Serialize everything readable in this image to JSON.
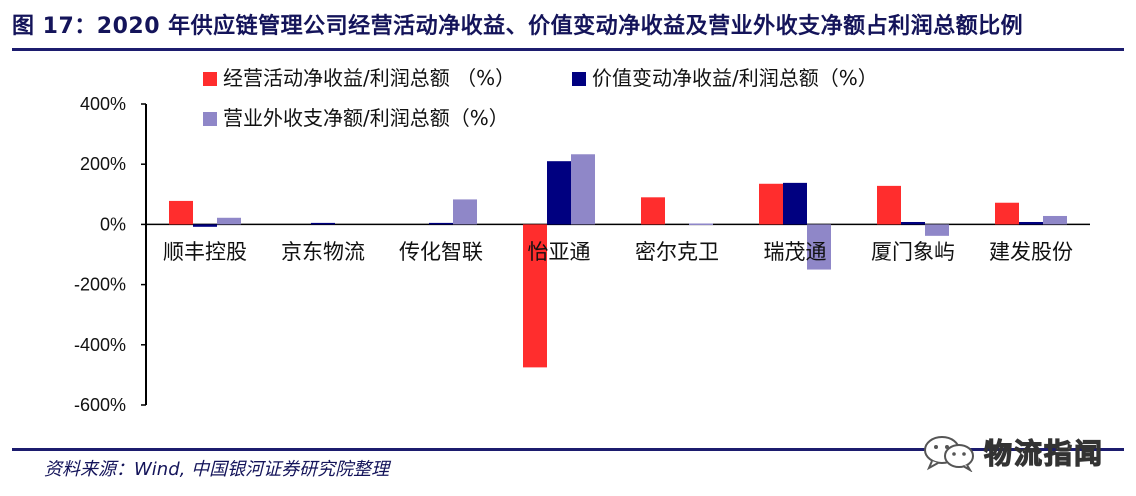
{
  "header": {
    "title": "图 17：2020 年供应链管理公司经营活动净收益、价值变动净收益及营业外收支净额占利润总额比例"
  },
  "footer": {
    "source": "资料来源：Wind, 中国银河证券研究院整理"
  },
  "watermark": {
    "text": "物流指闻",
    "icon": "wechat-icon"
  },
  "colors": {
    "series1": "#ff2d2d",
    "series2": "#000080",
    "series3": "#8f87c8",
    "brand": "#1c1c6e"
  },
  "chart_data": {
    "type": "bar",
    "title": "",
    "xlabel": "",
    "ylabel": "",
    "ylim": [
      -600,
      400
    ],
    "yticks": [
      400,
      200,
      0,
      -200,
      -400,
      -600
    ],
    "ytick_labels": [
      "400%",
      "200%",
      "0%",
      "-200%",
      "-400%",
      "-600%"
    ],
    "categories": [
      "顺丰控股",
      "京东物流",
      "传化智联",
      "怡亚通",
      "密尔克卫",
      "瑞茂通",
      "厦门象屿",
      "建发股份"
    ],
    "series": [
      {
        "name": "经营活动净收益/利润总额 （%）",
        "values": [
          78,
          0,
          0,
          -475,
          90,
          135,
          128,
          72
        ]
      },
      {
        "name": "价值变动净收益/利润总额（%）",
        "values": [
          -8,
          5,
          5,
          210,
          0,
          138,
          8,
          8
        ]
      },
      {
        "name": "营业外收支净额/利润总额（%）",
        "values": [
          22,
          0,
          83,
          233,
          3,
          -150,
          -38,
          28
        ]
      }
    ],
    "legend": "top",
    "grid": false
  }
}
